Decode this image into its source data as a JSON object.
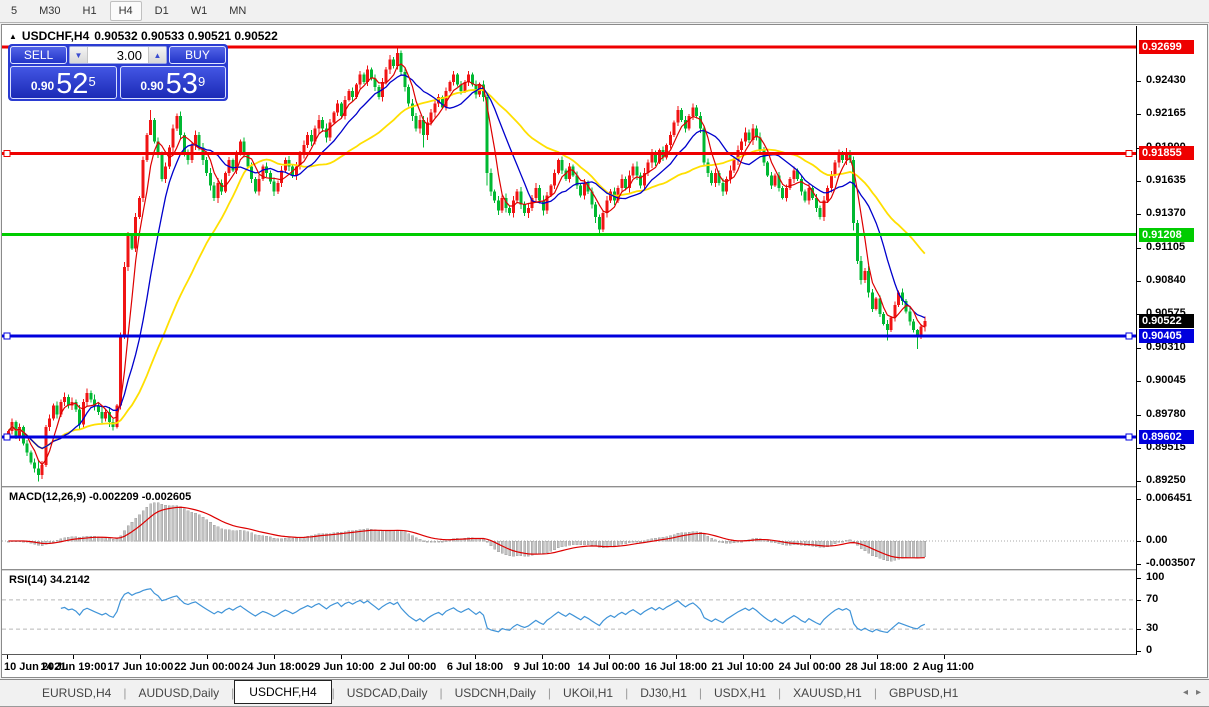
{
  "toolbar": {
    "items": [
      "5",
      "M30",
      "H1",
      "H4",
      "D1",
      "W1",
      "MN"
    ],
    "active": "H4"
  },
  "chart": {
    "title_arrow": "▲",
    "symbol": "USDCHF,H4",
    "quotes": "0.90532 0.90533 0.90521 0.90522"
  },
  "trade_panel": {
    "sell_label": "SELL",
    "buy_label": "BUY",
    "volume": "3.00",
    "down_arrow": "▼",
    "up_arrow": "▲",
    "sell_price_small": "0.90",
    "sell_price_big": "52",
    "sell_price_sup": "5",
    "buy_price_small": "0.90",
    "buy_price_big": "53",
    "buy_price_sup": "9"
  },
  "indicators": {
    "macd": {
      "label": "MACD(12,26,9)",
      "values": "-0.002209 -0.002605",
      "axis": [
        {
          "text": "0.006451",
          "v": 0.006451
        },
        {
          "text": "0.00",
          "v": 0
        },
        {
          "text": "-0.003507",
          "v": -0.003507
        }
      ]
    },
    "rsi": {
      "label": "RSI(14)",
      "value": "34.2142",
      "axis": [
        {
          "text": "100",
          "v": 100
        },
        {
          "text": "70",
          "v": 70
        },
        {
          "text": "30",
          "v": 30
        },
        {
          "text": "0",
          "v": 0
        }
      ],
      "levels": [
        70,
        30
      ]
    }
  },
  "price_axis": {
    "ticks": [
      "0.92430",
      "0.92165",
      "0.91900",
      "0.91635",
      "0.91370",
      "0.91105",
      "0.90840",
      "0.90575",
      "0.90310",
      "0.90045",
      "0.89780",
      "0.89515",
      "0.89250"
    ],
    "current": {
      "text": "0.90522",
      "value": 0.90522,
      "bg": "#000000"
    }
  },
  "levels": [
    {
      "text": "0.92699",
      "value": 0.92699,
      "color": "#ee0000",
      "width": 3,
      "selected": false
    },
    {
      "text": "0.91855",
      "value": 0.91855,
      "color": "#ee0000",
      "width": 3,
      "selected": true
    },
    {
      "text": "0.91208",
      "value": 0.91208,
      "color": "#00cc00",
      "width": 3,
      "selected": false
    },
    {
      "text": "0.90405",
      "value": 0.90405,
      "color": "#0000dd",
      "width": 3,
      "selected": true
    },
    {
      "text": "0.89602",
      "value": 0.89602,
      "color": "#0000dd",
      "width": 3,
      "selected": true
    }
  ],
  "time_axis": [
    "10 Jun 2021",
    "14 Jun 19:00",
    "17 Jun 10:00",
    "22 Jun 00:00",
    "24 Jun 18:00",
    "29 Jun 10:00",
    "2 Jul 00:00",
    "6 Jul 18:00",
    "9 Jul 10:00",
    "14 Jul 00:00",
    "16 Jul 18:00",
    "21 Jul 10:00",
    "24 Jul 00:00",
    "28 Jul 18:00",
    "2 Aug 11:00"
  ],
  "tabs": {
    "items": [
      "EURUSD,H4",
      "AUDUSD,Daily",
      "USDCHF,H4",
      "USDCAD,Daily",
      "USDCNH,Daily",
      "UKOil,H1",
      "DJ30,H1",
      "USDX,H1",
      "XAUUSD,H1",
      "GBPUSD,H1"
    ],
    "active": "USDCHF,H4",
    "scroll_left_icon": "◂",
    "scroll_right_icon": "▸"
  },
  "colors": {
    "candle_up": "#f01414",
    "candle_down": "#00b832",
    "ma_fast": "#dd0000",
    "ma_mid": "#0000cc",
    "ma_slow": "#ffdf00",
    "macd_hist_fill": "#c0c0c0",
    "macd_hist_stroke": "#969696",
    "macd_signal": "#dd0000",
    "rsi_line": "#4094d8",
    "level_dash": "#b8b8b8",
    "badge_red": "#dd0000",
    "badge_green": "#00c000",
    "badge_blue": "#0000cc",
    "badge_black": "#000000"
  },
  "chart_data": {
    "type": "candlestick",
    "symbol": "USDCHF",
    "timeframe": "H4",
    "note": "closes in 1e-5 price units; MA(5)/MA(13)/MA(34), MACD(12,26,9) and RSI(14) are derived from this series",
    "price_top": 0.92699,
    "price_bottom": 0.89602,
    "closes": [
      89650,
      89720,
      89600,
      89680,
      89550,
      89480,
      89400,
      89350,
      89300,
      89380,
      89680,
      89750,
      89850,
      89780,
      89880,
      89920,
      89850,
      89880,
      89820,
      89700,
      89880,
      89950,
      89900,
      89850,
      89800,
      89750,
      89800,
      89720,
      89680,
      89850,
      90400,
      90950,
      91200,
      91100,
      91350,
      91500,
      91800,
      92000,
      92120,
      91950,
      91850,
      91650,
      91750,
      91900,
      92050,
      92150,
      92000,
      91850,
      91800,
      91920,
      92000,
      91900,
      91800,
      91700,
      91600,
      91500,
      91620,
      91550,
      91700,
      91800,
      91720,
      91850,
      91950,
      91850,
      91750,
      91650,
      91550,
      91650,
      91750,
      91700,
      91630,
      91550,
      91620,
      91720,
      91800,
      91750,
      91680,
      91750,
      91850,
      91920,
      92000,
      91950,
      92050,
      92120,
      92050,
      91980,
      92100,
      92180,
      92250,
      92150,
      92280,
      92350,
      92300,
      92400,
      92480,
      92420,
      92520,
      92450,
      92380,
      92300,
      92420,
      92520,
      92600,
      92550,
      92650,
      92500,
      92380,
      92250,
      92150,
      92050,
      92120,
      92000,
      92100,
      92180,
      92250,
      92300,
      92220,
      92350,
      92420,
      92480,
      92400,
      92350,
      92420,
      92480,
      92400,
      92320,
      92400,
      92300,
      91700,
      91550,
      91480,
      91400,
      91500,
      91420,
      91380,
      91480,
      91550,
      91450,
      91380,
      91420,
      91500,
      91580,
      91480,
      91400,
      91520,
      91600,
      91700,
      91800,
      91720,
      91650,
      91750,
      91680,
      91600,
      91520,
      91620,
      91550,
      91450,
      91350,
      91250,
      91380,
      91480,
      91550,
      91480,
      91580,
      91650,
      91580,
      91680,
      91750,
      91680,
      91600,
      91700,
      91780,
      91850,
      91780,
      91880,
      91820,
      91920,
      92000,
      92100,
      92200,
      92120,
      92050,
      92150,
      92220,
      92150,
      92050,
      91780,
      91700,
      91620,
      91700,
      91620,
      91550,
      91650,
      91720,
      91800,
      91880,
      91950,
      92020,
      91960,
      92050,
      91980,
      91880,
      91780,
      91680,
      91600,
      91680,
      91580,
      91500,
      91580,
      91650,
      91720,
      91650,
      91550,
      91480,
      91580,
      91500,
      91420,
      91350,
      91480,
      91580,
      91680,
      91780,
      91850,
      91800,
      91860,
      91800,
      91300,
      91000,
      90850,
      90920,
      90750,
      90620,
      90700,
      90580,
      90500,
      90450,
      90550,
      90650,
      90750,
      90680,
      90600,
      90520,
      90450,
      90400,
      90480,
      90522
    ],
    "wick_overrides": {
      "8": [
        89420,
        89250
      ],
      "30": [
        90430,
        89820
      ],
      "31": [
        90990,
        90380
      ],
      "38": [
        92200,
        92000
      ],
      "104": [
        92699,
        92520
      ],
      "111": [
        92150,
        91900
      ],
      "128": [
        92330,
        91600
      ],
      "157": [
        91470,
        91300
      ],
      "158": [
        91370,
        91210
      ],
      "217": [
        91440,
        91330
      ],
      "226": [
        91830,
        91240
      ],
      "235": [
        90530,
        90370
      ],
      "243": [
        90460,
        90300
      ],
      "245": [
        90560,
        90440
      ]
    }
  }
}
